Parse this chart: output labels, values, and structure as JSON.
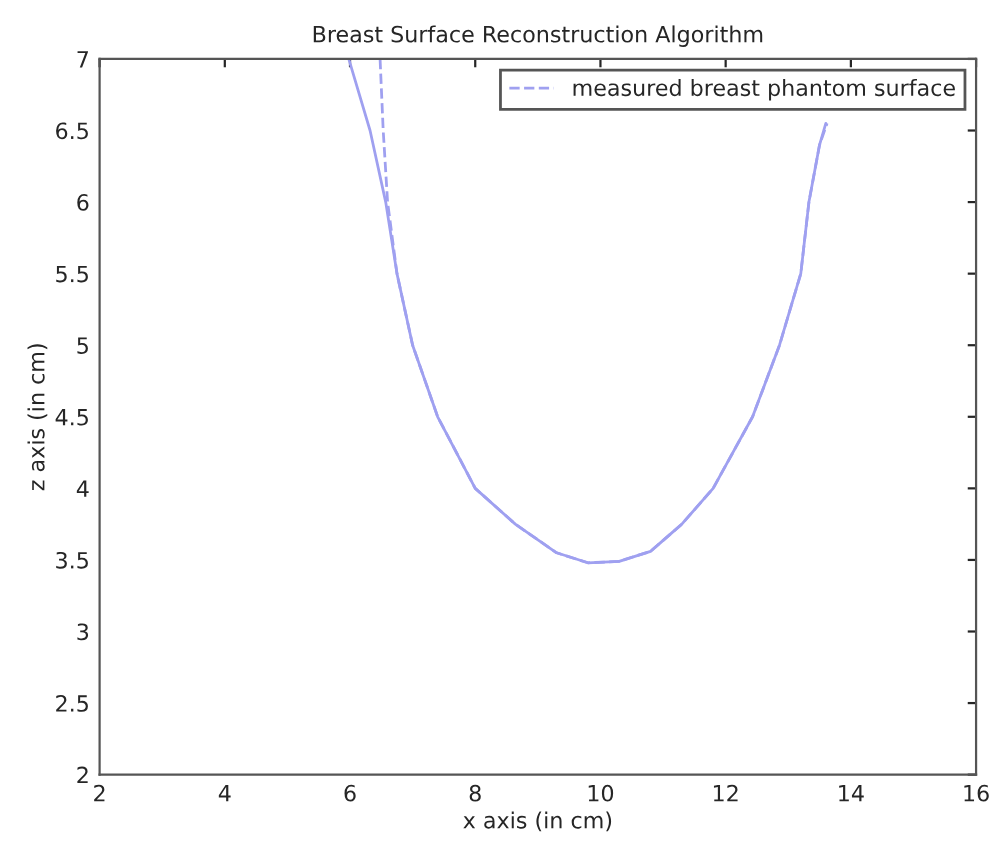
{
  "chart_data": {
    "type": "line",
    "title": "Breast Surface Reconstruction Algorithm",
    "xlabel": "x axis (in cm)",
    "ylabel": "z axis (in cm)",
    "xlim": [
      2,
      16
    ],
    "ylim": [
      2,
      7
    ],
    "xticks": [
      2,
      4,
      6,
      8,
      10,
      12,
      14,
      16
    ],
    "yticks": [
      2,
      2.5,
      3,
      3.5,
      4,
      4.5,
      5,
      5.5,
      6,
      6.5,
      7
    ],
    "grid": false,
    "legend": "top right",
    "series": [
      {
        "color": "#9fa0f0",
        "line_style": "solid",
        "x": [
          5.98,
          6.32,
          6.57,
          6.75,
          7.0,
          7.4,
          8.0,
          8.64,
          9.3,
          9.8,
          10.3,
          10.8,
          11.3,
          11.8,
          12.43,
          12.86,
          13.2,
          13.33,
          13.5,
          13.6
        ],
        "values": [
          7,
          6.5,
          6,
          5.5,
          5,
          4.5,
          4,
          3.75,
          3.55,
          3.48,
          3.49,
          3.56,
          3.75,
          4,
          4.5,
          5,
          5.5,
          6,
          6.4,
          6.55
        ]
      },
      {
        "name": "measured breast phantom surface",
        "color": "#9fa0f0",
        "line_style": "dashed",
        "x": [
          6.48,
          6.53,
          6.6,
          6.75,
          7.0,
          7.4,
          8.0,
          8.64,
          9.3,
          9.8,
          10.3,
          10.8,
          11.3,
          11.8,
          12.43,
          12.86,
          13.2,
          13.33,
          13.5,
          13.62
        ],
        "values": [
          7,
          6.5,
          6,
          5.5,
          5,
          4.5,
          4,
          3.75,
          3.55,
          3.48,
          3.49,
          3.56,
          3.75,
          4,
          4.5,
          5,
          5.5,
          6,
          6.4,
          6.55
        ]
      }
    ]
  }
}
